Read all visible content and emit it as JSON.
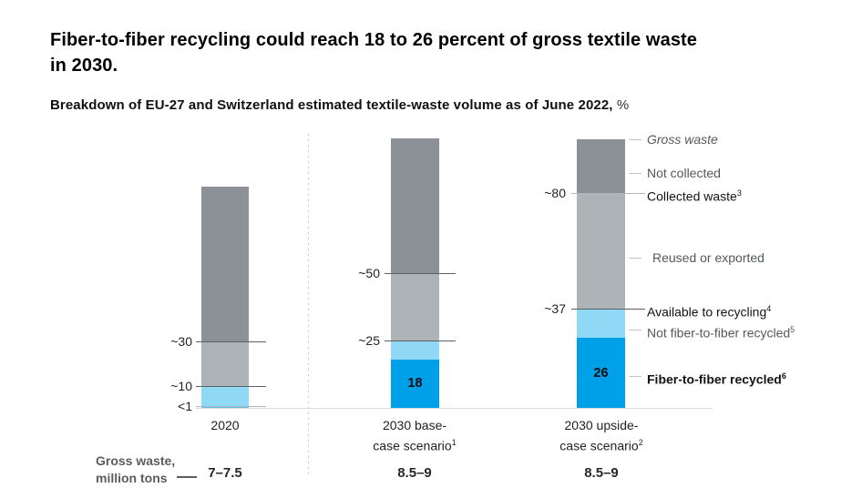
{
  "header": {
    "title_lines": [
      "Fiber-to-fiber recycling could reach 18 to 26 percent of gross textile waste",
      "in 2030."
    ]
  },
  "subtitle": {
    "text": "Breakdown of EU-27 and Switzerland estimated textile-waste volume as of June 2022,",
    "suffix": " %"
  },
  "chart_data": {
    "type": "bar",
    "stacked": true,
    "unit": "%",
    "grid": false,
    "legend_position": "right-annotations",
    "colors": {
      "dark_gray": "#8b9196",
      "light_gray": "#aeb3b7",
      "light_blue": "#8fd8f6",
      "sliver_blue": "#59c1ec",
      "dark_blue": "#00a0e8",
      "tick_line_dark": "#5d6164",
      "tick_line_light": "#b3b6b8",
      "baseline": "#d9dbdc",
      "divider_dot": "#c6c8ca"
    },
    "bars": [
      {
        "id": "2020",
        "category_lines": [
          {
            "text": "2020"
          }
        ],
        "gross_waste_million_tons": "7–7.5",
        "segments": [
          {
            "from": 30,
            "to": 100,
            "color": "dark_gray"
          },
          {
            "from": 10,
            "to": 30,
            "color": "light_gray"
          },
          {
            "from": 1,
            "to": 10,
            "color": "light_blue"
          },
          {
            "from": 0,
            "to": 1,
            "color": "sliver_blue"
          }
        ],
        "ticks": [
          {
            "label": "~30",
            "value": 30,
            "line": "dark"
          },
          {
            "label": "~10",
            "value": 10,
            "line": "dark"
          },
          {
            "label": "<1",
            "value": 1,
            "line": "light"
          }
        ]
      },
      {
        "id": "2030-base",
        "category_lines": [
          {
            "text": "2030 base-"
          },
          {
            "text": "case scenario",
            "sup": "1"
          }
        ],
        "gross_waste_million_tons": "8.5–9",
        "segments": [
          {
            "from": 50,
            "to": 100,
            "color": "dark_gray"
          },
          {
            "from": 25,
            "to": 50,
            "color": "light_gray"
          },
          {
            "from": 18,
            "to": 25,
            "color": "light_blue"
          },
          {
            "from": 0,
            "to": 18,
            "color": "dark_blue",
            "value_label": "18"
          }
        ],
        "ticks": [
          {
            "label": "~50",
            "value": 50,
            "line": "dark"
          },
          {
            "label": "~25",
            "value": 25,
            "line": "dark"
          }
        ]
      },
      {
        "id": "2030-upside",
        "category_lines": [
          {
            "text": "2030 upside-"
          },
          {
            "text": "case scenario",
            "sup": "2"
          }
        ],
        "gross_waste_million_tons": "8.5–9",
        "segments": [
          {
            "from": 80,
            "to": 100,
            "color": "dark_gray"
          },
          {
            "from": 37,
            "to": 80,
            "color": "light_gray"
          },
          {
            "from": 26,
            "to": 37,
            "color": "light_blue"
          },
          {
            "from": 0,
            "to": 26,
            "color": "dark_blue",
            "value_label": "26"
          }
        ],
        "ticks": [
          {
            "label": "~80",
            "value": 80,
            "line": "light"
          },
          {
            "label": "~37",
            "value": 37,
            "line": "dark"
          }
        ]
      }
    ],
    "right_labels": [
      {
        "text": "Gross waste",
        "color": "gray",
        "italic": true,
        "at": 100,
        "dash": true
      },
      {
        "text": "Not collected",
        "color": "gray",
        "at": 87.5,
        "dash": true
      },
      {
        "text": "Collected waste",
        "sup": "3",
        "color": "black",
        "at": 80,
        "dash": false
      },
      {
        "text": "Reused or exported",
        "color": "gray",
        "at": 56,
        "dash": true,
        "indent": 6
      },
      {
        "text": "Available to recycling",
        "sup": "4",
        "color": "black",
        "at": 37,
        "dash": false
      },
      {
        "text": "Not fiber-to-fiber recycled",
        "sup": "5",
        "color": "gray",
        "at": 29,
        "dash": true
      },
      {
        "text": "Fiber-to-fiber recycled",
        "sup": "6",
        "color": "black",
        "bold": true,
        "at": 12,
        "dash": true
      }
    ],
    "bottom_row": {
      "label_lines": [
        "Gross waste,",
        "million tons"
      ],
      "values": [
        "7–7.5",
        "8.5–9",
        "8.5–9"
      ]
    }
  }
}
